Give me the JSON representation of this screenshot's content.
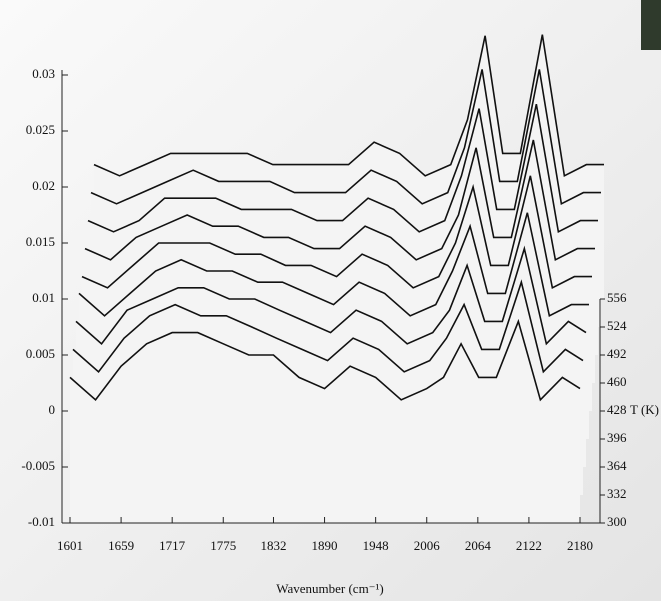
{
  "chart_data": {
    "type": "waterfall",
    "x_label": "Wavenumber (cm⁻¹)",
    "z_label": "T (K)",
    "line_color": "#111111",
    "x": [
      1601,
      1630,
      1659,
      1688,
      1717,
      1746,
      1775,
      1804,
      1832,
      1861,
      1890,
      1919,
      1948,
      1977,
      2006,
      2025,
      2045,
      2065,
      2085,
      2110,
      2135,
      2160,
      2180
    ],
    "series": [
      {
        "values": [
          0.003,
          0.001,
          0.004,
          0.006,
          0.007,
          0.007,
          0.006,
          0.005,
          0.005,
          0.003,
          0.002,
          0.004,
          0.003,
          0.001,
          0.002,
          0.003,
          0.006,
          0.003,
          0.003,
          0.008,
          0.001,
          0.003,
          0.002
        ]
      },
      {
        "values": [
          0.003,
          0.001,
          0.004,
          0.006,
          0.007,
          0.006,
          0.006,
          0.005,
          0.004,
          0.003,
          0.002,
          0.004,
          0.003,
          0.001,
          0.002,
          0.004,
          0.007,
          0.003,
          0.003,
          0.009,
          0.001,
          0.003,
          0.002
        ]
      },
      {
        "values": [
          0.003,
          0.001,
          0.004,
          0.005,
          0.006,
          0.006,
          0.005,
          0.005,
          0.004,
          0.003,
          0.002,
          0.004,
          0.003,
          0.001,
          0.002,
          0.004,
          0.008,
          0.003,
          0.003,
          0.0095,
          0.001,
          0.003,
          0.002
        ]
      },
      {
        "values": [
          0.003,
          0.001,
          0.003,
          0.005,
          0.006,
          0.005,
          0.005,
          0.004,
          0.004,
          0.003,
          0.002,
          0.004,
          0.003,
          0.001,
          0.002,
          0.005,
          0.009,
          0.003,
          0.003,
          0.0102,
          0.001,
          0.002,
          0.002
        ]
      },
      {
        "values": [
          0.002,
          0.001,
          0.003,
          0.005,
          0.005,
          0.005,
          0.004,
          0.004,
          0.003,
          0.003,
          0.002,
          0.004,
          0.003,
          0.001,
          0.002,
          0.005,
          0.01,
          0.003,
          0.003,
          0.011,
          0.001,
          0.002,
          0.002
        ]
      },
      {
        "values": [
          0.002,
          0.001,
          0.003,
          0.004,
          0.005,
          0.004,
          0.004,
          0.003,
          0.003,
          0.002,
          0.002,
          0.004,
          0.003,
          0.001,
          0.002,
          0.005,
          0.011,
          0.003,
          0.003,
          0.0117,
          0.001,
          0.002,
          0.002
        ]
      },
      {
        "values": [
          0.002,
          0.001,
          0.002,
          0.004,
          0.004,
          0.004,
          0.003,
          0.003,
          0.003,
          0.002,
          0.002,
          0.004,
          0.003,
          0.001,
          0.002,
          0.006,
          0.012,
          0.003,
          0.003,
          0.0124,
          0.001,
          0.002,
          0.002
        ]
      },
      {
        "values": [
          0.002,
          0.001,
          0.002,
          0.003,
          0.004,
          0.003,
          0.003,
          0.003,
          0.002,
          0.002,
          0.002,
          0.004,
          0.003,
          0.001,
          0.002,
          0.006,
          0.013,
          0.003,
          0.003,
          0.013,
          0.001,
          0.002,
          0.002
        ]
      },
      {
        "values": [
          0.002,
          0.001,
          0.002,
          0.003,
          0.003,
          0.003,
          0.003,
          0.002,
          0.002,
          0.002,
          0.002,
          0.004,
          0.003,
          0.001,
          0.002,
          0.006,
          0.0135,
          0.003,
          0.003,
          0.0136,
          0.001,
          0.002,
          0.002
        ]
      }
    ],
    "xlim": [
      1601,
      2180
    ],
    "xticks": [
      1601,
      1659,
      1717,
      1775,
      1832,
      1890,
      1948,
      2006,
      2064,
      2122,
      2180
    ],
    "ylim": [
      -0.01,
      0.03
    ],
    "yticks": [
      -0.01,
      -0.005,
      0,
      0.005,
      0.01,
      0.015,
      0.02,
      0.025,
      0.03
    ],
    "zlim": [
      300,
      556
    ],
    "zticks": [
      300,
      332,
      364,
      396,
      428,
      460,
      492,
      524,
      556
    ],
    "z_label_tick": 4
  }
}
